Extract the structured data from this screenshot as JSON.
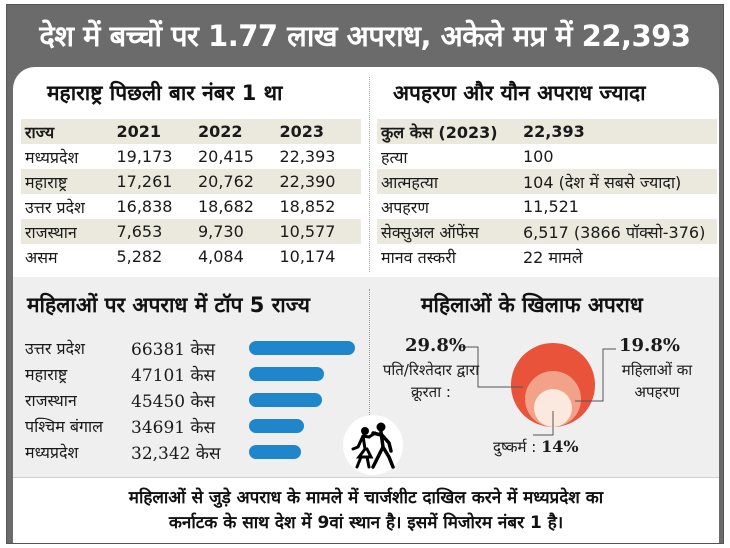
{
  "headline": "देश में बच्चों पर 1.77 लाख अपराध, अकेले मप्र में 22,393",
  "left_section": {
    "title": "महाराष्ट्र पिछली बार नंबर 1 था",
    "columns": [
      "राज्य",
      "2021",
      "2022",
      "2023"
    ],
    "rows": [
      [
        "मध्यप्रदेश",
        "19,173",
        "20,415",
        "22,393"
      ],
      [
        "महाराष्ट्र",
        "17,261",
        "20,762",
        "22,390"
      ],
      [
        "उत्तर प्रदेश",
        "16,838",
        "18,682",
        "18,852"
      ],
      [
        "राजस्थान",
        "7,653",
        "9,730",
        "10,577"
      ],
      [
        "असम",
        "5,282",
        "4,084",
        "10,174"
      ]
    ]
  },
  "right_section": {
    "title": "अपहरण और यौन अपराध ज्यादा",
    "header": [
      "कुल केस (2023)",
      "22,393"
    ],
    "rows": [
      [
        "हत्या",
        "100"
      ],
      [
        "आत्महत्या",
        "104 (देश में सबसे ज्यादा)"
      ],
      [
        "अपहरण",
        "11,521"
      ],
      [
        "सेक्सुअल ऑफेंस",
        "6,517 (3866 पॉक्सो-376)"
      ],
      [
        "मानव तस्करी",
        "22 मामले"
      ]
    ]
  },
  "colors": {
    "headline_bg": "#6b6b6b",
    "bar": "#1f86cc",
    "circle_outer": "#e8533a",
    "circle_mid": "#f2a288",
    "circle_inner": "#fbe9df",
    "stripe": "#ebe9dd"
  },
  "chart_data": [
    {
      "type": "bar",
      "title": "महिलाओं पर अपराध में टॉप 5 राज्य",
      "categories": [
        "उत्तर प्रदेश",
        "महाराष्ट्र",
        "राजस्थान",
        "पश्चिम बंगाल",
        "मध्यप्रदेश"
      ],
      "values": [
        66381,
        47101,
        45450,
        34691,
        32342
      ],
      "value_labels": [
        "66381 केस",
        "47101 केस",
        "45450 केस",
        "34691 केस",
        "32,342 केस"
      ],
      "orientation": "horizontal",
      "xlabel": "",
      "ylabel": ""
    },
    {
      "type": "pie",
      "title": "महिलाओं के खिलाफ अपराध",
      "style": "nested-circles",
      "slices": [
        {
          "label": "पति/रिश्तेदार द्वारा क्रूरता :",
          "value": 29.8,
          "display": "29.8%"
        },
        {
          "label": "महिलाओं का अपहरण",
          "value": 19.8,
          "display": "19.8%"
        },
        {
          "label": "दुष्कर्म :",
          "value": 14,
          "display": "14%"
        }
      ]
    }
  ],
  "footer": {
    "line1": "महिलाओं से जुड़े अपराध के मामले में चार्जशीट दाखिल करने में मध्यप्रदेश का",
    "line2": "कर्नाटक के साथ देश में 9वां स्थान है। इसमें मिजोरम नंबर 1 है।"
  }
}
